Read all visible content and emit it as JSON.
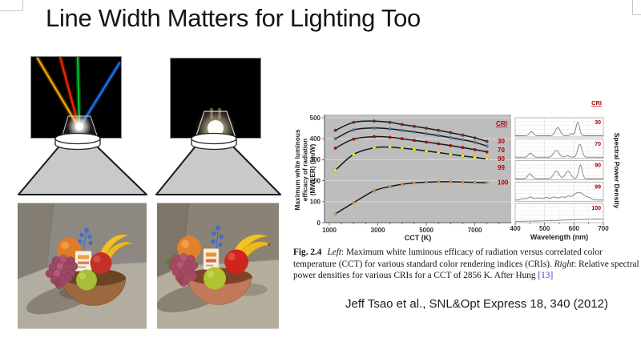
{
  "slide": {
    "title": "Line Width Matters for Lighting Too",
    "citation": "Jeff Tsao et al., SNL&Opt Express 18, 340 (2012)"
  },
  "figure_caption": {
    "fig_label": "Fig. 2.4",
    "left_label": "Left",
    "left_text": ": Maximum white luminous efficacy of radiation versus correlated color temperature (CCT) for various standard color rendering indices (CRIs). ",
    "right_label": "Right",
    "right_text": ": Relative spectral power densities for various CRIs for a CCT of 2856 K. After Hung ",
    "reference": "[13]"
  },
  "illustration": {
    "laser_beam_colors": [
      "#ffb000",
      "#ff2a00",
      "#00cc33",
      "#2277ff"
    ],
    "cone_fill": "#c9c9c9"
  },
  "chart_data": [
    {
      "type": "line",
      "title": "",
      "xlabel": "CCT (K)",
      "ylabel": "Maximum white luminous efficacy of radiation (MWLER) (lm/W)",
      "ylabel_lines": [
        "Maximum white luminous",
        "efficacy of radiation",
        "(MWLER) (lm/W)"
      ],
      "xlim": [
        800,
        8500
      ],
      "ylim": [
        0,
        500
      ],
      "x_ticks": [
        1000,
        3000,
        5000,
        7000
      ],
      "x_minor_step": 500,
      "y_ticks": [
        0,
        100,
        200,
        300,
        400,
        500
      ],
      "legend_title": "CRI",
      "legend_position": "right",
      "label_color": "#b00000",
      "grid": "horizontal",
      "x": [
        1250,
        2000,
        2850,
        3500,
        4000,
        4500,
        5000,
        5500,
        6000,
        6500,
        7000,
        7500
      ],
      "series": [
        {
          "name": "30",
          "marker_color": "#7b2a2a",
          "values": [
            440,
            478,
            484,
            478,
            468,
            459,
            450,
            440,
            429,
            417,
            404,
            387
          ]
        },
        {
          "name": "70",
          "marker_color": "#4a7ebb",
          "values": [
            400,
            442,
            451,
            447,
            440,
            432,
            424,
            415,
            405,
            395,
            383,
            365
          ]
        },
        {
          "name": "90",
          "marker_color": "#c00000",
          "values": [
            355,
            398,
            410,
            407,
            400,
            392,
            384,
            376,
            367,
            358,
            348,
            337
          ]
        },
        {
          "name": "99",
          "marker_color": "#ffff00",
          "values": [
            250,
            325,
            357,
            360,
            355,
            349,
            342,
            334,
            326,
            318,
            311,
            303
          ]
        },
        {
          "name": "100",
          "marker_color": "#e8963c",
          "values": [
            42,
            95,
            152,
            172,
            183,
            190,
            193,
            195,
            195,
            194,
            192,
            190
          ]
        }
      ]
    },
    {
      "type": "line",
      "title": "",
      "xlabel": "Wavelength (nm)",
      "ylabel": "Spectral Power Density",
      "xlim": [
        400,
        700
      ],
      "x_ticks": [
        400,
        500,
        600,
        700
      ],
      "legend_title": "CRI",
      "label_color": "#b00000",
      "grid": "on",
      "panels": [
        {
          "name": "30",
          "peaks": [
            [
              455,
              0.3,
              7
            ],
            [
              545,
              0.6,
              8
            ],
            [
              592,
              0.15,
              5
            ],
            [
              613,
              1.0,
              6
            ]
          ]
        },
        {
          "name": "70",
          "peaks": [
            [
              452,
              0.3,
              7
            ],
            [
              540,
              0.5,
              9
            ],
            [
              578,
              0.1,
              6
            ],
            [
              620,
              0.95,
              7
            ]
          ]
        },
        {
          "name": "90",
          "peaks": [
            [
              450,
              0.35,
              7
            ],
            [
              540,
              0.55,
              9
            ],
            [
              580,
              0.55,
              9
            ],
            [
              622,
              1.0,
              6
            ]
          ]
        },
        {
          "name": "99",
          "peaks": [
            [
              428,
              0.1,
              8
            ],
            [
              452,
              0.22,
              8
            ],
            [
              478,
              0.15,
              9
            ],
            [
              505,
              0.18,
              9
            ],
            [
              532,
              0.22,
              9
            ],
            [
              558,
              0.22,
              9
            ],
            [
              582,
              0.28,
              9
            ],
            [
              605,
              0.35,
              9
            ],
            [
              622,
              0.45,
              10
            ],
            [
              645,
              0.22,
              12
            ]
          ]
        },
        {
          "name": "100",
          "peaks": [
            [
              700,
              0.18,
              120
            ]
          ]
        }
      ]
    }
  ]
}
